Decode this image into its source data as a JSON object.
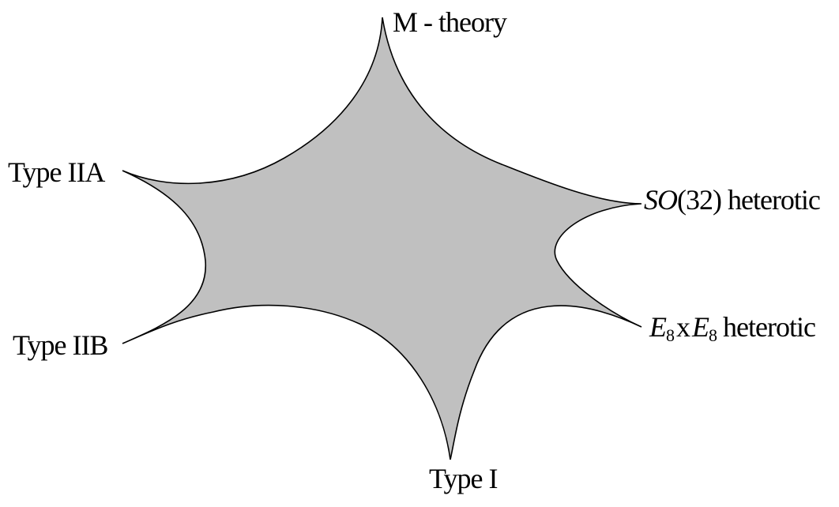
{
  "diagram": {
    "region_fill": "#c0c0c0",
    "region_stroke": "#000000",
    "vertices": {
      "m_theory": "M - theory",
      "type_iia": "Type IIA",
      "type_iib": "Type IIB",
      "type_i": "Type I",
      "so32": {
        "group": "SO",
        "rank": "(32)",
        "suffix": " heterotic"
      },
      "e8e8": {
        "e1": "E",
        "sub1": "8",
        "times": "x",
        "e2": "E",
        "sub2": "8",
        "suffix": " heterotic"
      }
    }
  }
}
